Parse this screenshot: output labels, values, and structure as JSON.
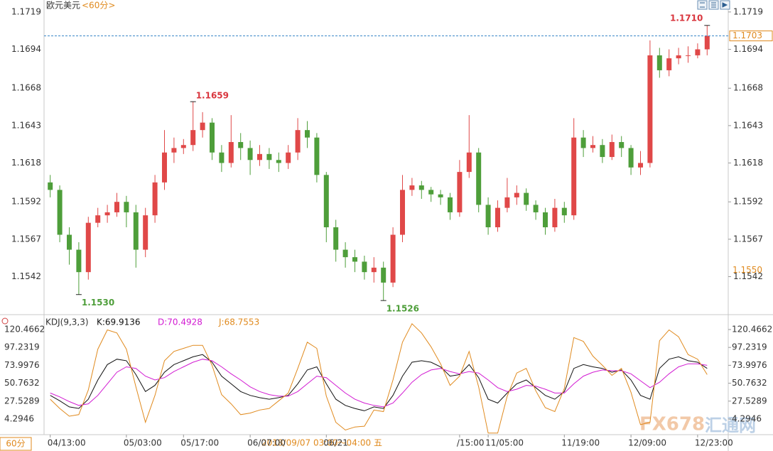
{
  "header": {
    "title": "欧元美元",
    "period": "<60分>",
    "period_button": "60分",
    "crosshair_time": "2018/09/07 03:00～04:00 五",
    "watermark": "FX678",
    "watermark_cn": "汇通网"
  },
  "chart_data": [
    {
      "type": "candlestick",
      "categories": [
        "04/13:00",
        null,
        null,
        null,
        null,
        null,
        null,
        null,
        "05/03:00",
        null,
        null,
        null,
        null,
        null,
        "05/17:00",
        null,
        null,
        null,
        null,
        null,
        null,
        "06/07:00",
        null,
        null,
        null,
        null,
        null,
        null,
        null,
        "06/21",
        null,
        null,
        null,
        null,
        null,
        null,
        null,
        null,
        null,
        null,
        null,
        null,
        null,
        "/15:00",
        null,
        null,
        "11/05:00",
        null,
        null,
        null,
        null,
        null,
        null,
        null,
        "11/19:00",
        null,
        null,
        null,
        null,
        null,
        null,
        "12/09:00",
        null,
        null,
        null,
        null,
        null,
        null,
        "12/23:00",
        null
      ],
      "open": [
        1.1605,
        1.16,
        1.157,
        1.156,
        1.1545,
        1.1578,
        1.1583,
        1.1585,
        1.1592,
        1.1585,
        1.156,
        1.1583,
        1.1605,
        1.1625,
        1.1628,
        1.163,
        1.164,
        1.1645,
        1.1625,
        1.1618,
        1.1632,
        1.1628,
        1.162,
        1.1624,
        1.162,
        1.1618,
        1.1625,
        1.164,
        1.1635,
        1.161,
        1.1575,
        1.156,
        1.1555,
        1.1552,
        1.1545,
        1.1548,
        1.1538,
        1.157,
        1.16,
        1.1603,
        1.16,
        1.1597,
        1.1595,
        1.1585,
        1.1612,
        1.1625,
        1.159,
        1.1575,
        1.1588,
        1.1595,
        1.1598,
        1.159,
        1.1585,
        1.1575,
        1.1588,
        1.1583,
        1.1635,
        1.1628,
        1.163,
        1.1622,
        1.1632,
        1.1628,
        1.1615,
        1.1618,
        1.169,
        1.168,
        1.1688,
        1.169,
        1.169,
        1.1694
      ],
      "high": [
        1.161,
        1.1603,
        1.1575,
        1.1565,
        1.1582,
        1.1588,
        1.159,
        1.1598,
        1.1596,
        1.159,
        1.1588,
        1.161,
        1.164,
        1.1635,
        1.1634,
        1.1659,
        1.1652,
        1.1648,
        1.163,
        1.165,
        1.1638,
        1.1633,
        1.163,
        1.1628,
        1.1625,
        1.163,
        1.1648,
        1.1646,
        1.1638,
        1.1612,
        1.158,
        1.1565,
        1.156,
        1.1556,
        1.1555,
        1.1552,
        1.1575,
        1.161,
        1.1608,
        1.1606,
        1.1602,
        1.16,
        1.1598,
        1.162,
        1.165,
        1.1628,
        1.1595,
        1.1593,
        1.1608,
        1.1603,
        1.1601,
        1.1593,
        1.1588,
        1.1594,
        1.1592,
        1.1648,
        1.164,
        1.1636,
        1.1634,
        1.1637,
        1.1636,
        1.163,
        1.1626,
        1.17,
        1.1695,
        1.1694,
        1.1695,
        1.1696,
        1.1698,
        1.171
      ],
      "low": [
        1.1595,
        1.1565,
        1.155,
        1.153,
        1.154,
        1.1575,
        1.1578,
        1.1582,
        1.1575,
        1.1548,
        1.1555,
        1.1578,
        1.16,
        1.1618,
        1.1624,
        1.1626,
        1.1635,
        1.162,
        1.1612,
        1.1615,
        1.162,
        1.161,
        1.1616,
        1.1614,
        1.1612,
        1.1614,
        1.162,
        1.1628,
        1.1605,
        1.1565,
        1.1552,
        1.1548,
        1.1545,
        1.154,
        1.1538,
        1.1526,
        1.1535,
        1.1565,
        1.1596,
        1.1594,
        1.1592,
        1.159,
        1.158,
        1.1582,
        1.1608,
        1.1585,
        1.157,
        1.1572,
        1.1585,
        1.159,
        1.1586,
        1.158,
        1.157,
        1.1572,
        1.1578,
        1.158,
        1.1622,
        1.1625,
        1.1618,
        1.162,
        1.1622,
        1.161,
        1.161,
        1.1615,
        1.1675,
        1.1676,
        1.1684,
        1.1685,
        1.1688,
        1.169
      ],
      "close": [
        1.16,
        1.157,
        1.156,
        1.1545,
        1.1578,
        1.1583,
        1.1585,
        1.1592,
        1.1585,
        1.156,
        1.1583,
        1.1605,
        1.1625,
        1.1628,
        1.163,
        1.164,
        1.1645,
        1.1625,
        1.1618,
        1.1632,
        1.1628,
        1.162,
        1.1624,
        1.162,
        1.1618,
        1.1625,
        1.164,
        1.1635,
        1.161,
        1.1575,
        1.156,
        1.1555,
        1.1552,
        1.1545,
        1.1548,
        1.1538,
        1.157,
        1.16,
        1.1603,
        1.16,
        1.1597,
        1.1595,
        1.1585,
        1.1612,
        1.1625,
        1.159,
        1.1575,
        1.1588,
        1.1595,
        1.1598,
        1.159,
        1.1585,
        1.1575,
        1.1588,
        1.1583,
        1.1635,
        1.1628,
        1.163,
        1.1622,
        1.1632,
        1.1628,
        1.1615,
        1.1618,
        1.169,
        1.168,
        1.1688,
        1.169,
        1.169,
        1.1694,
        1.1703
      ],
      "up_color": "#e04848",
      "down_color": "#4e9e3a",
      "ylim": [
        1.1518,
        1.1727
      ],
      "yticks": [
        1.1719,
        1.1694,
        1.1668,
        1.1643,
        1.1618,
        1.1592,
        1.1567,
        1.1542
      ],
      "current_price": {
        "value": 1.1703,
        "color": "#e08a1e",
        "line_color": "#3a87c8"
      },
      "price_marker": {
        "value": 1.155,
        "label": "1.1550",
        "color": "#e08a1e"
      },
      "annotations": [
        {
          "value": 1.171,
          "label": "1.1710",
          "color": "#d9363e"
        },
        {
          "value": 1.1659,
          "color": "#d9363e"
        },
        {
          "value": 1.153,
          "label": "1.1530",
          "color": "#4e9e3a"
        },
        {
          "value": 1.1526,
          "color": "#4e9e3a"
        }
      ]
    },
    {
      "type": "line",
      "title": "KDJ(9,3,3)",
      "series": [
        {
          "name": "K:69.9136",
          "color": "#111111",
          "values": [
            35,
            28,
            20,
            18,
            30,
            55,
            75,
            82,
            80,
            62,
            40,
            48,
            65,
            75,
            80,
            85,
            88,
            78,
            60,
            50,
            40,
            35,
            32,
            30,
            32,
            35,
            50,
            68,
            72,
            50,
            30,
            22,
            18,
            15,
            20,
            18,
            35,
            60,
            78,
            80,
            78,
            72,
            60,
            62,
            75,
            58,
            30,
            25,
            38,
            50,
            55,
            45,
            35,
            30,
            40,
            70,
            75,
            72,
            70,
            65,
            68,
            55,
            35,
            30,
            70,
            82,
            85,
            80,
            78,
            70
          ]
        },
        {
          "name": "D:70.4928",
          "color": "#d21bd2",
          "values": [
            38,
            33,
            27,
            22,
            24,
            35,
            50,
            65,
            72,
            70,
            60,
            55,
            58,
            66,
            72,
            78,
            82,
            80,
            72,
            63,
            55,
            46,
            40,
            36,
            34,
            34,
            40,
            50,
            60,
            58,
            48,
            38,
            30,
            25,
            22,
            20,
            25,
            38,
            52,
            62,
            68,
            70,
            66,
            63,
            66,
            64,
            55,
            45,
            40,
            43,
            48,
            47,
            43,
            38,
            38,
            50,
            60,
            65,
            68,
            67,
            67,
            63,
            54,
            45,
            52,
            63,
            72,
            76,
            76,
            74
          ]
        },
        {
          "name": "J:68.7553",
          "color": "#e08a1e",
          "values": [
            30,
            18,
            8,
            10,
            42,
            95,
            120,
            116,
            95,
            46,
            0,
            35,
            80,
            92,
            96,
            100,
            100,
            74,
            36,
            24,
            10,
            12,
            16,
            18,
            28,
            38,
            70,
            104,
            96,
            34,
            0,
            -10,
            -6,
            -5,
            16,
            14,
            55,
            104,
            128,
            116,
            98,
            76,
            48,
            60,
            92,
            46,
            -14,
            -14,
            34,
            64,
            70,
            41,
            19,
            14,
            44,
            110,
            105,
            86,
            74,
            61,
            70,
            39,
            -3,
            0,
            106,
            120,
            111,
            88,
            82,
            62
          ]
        }
      ],
      "ylim": [
        -16,
        131.5
      ],
      "yticks": [
        120.4662,
        97.2319,
        73.9976,
        50.7632,
        27.5289,
        4.2946
      ]
    }
  ]
}
